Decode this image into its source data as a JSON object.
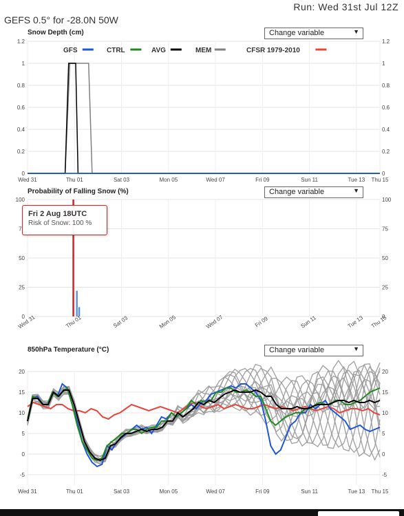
{
  "header": {
    "run": "Run: Wed 31st Jul 12Z",
    "title": "GEFS 0.5° for -28.0N 50W"
  },
  "select_label": "Change variable",
  "x_labels": [
    "Wed 31",
    "Thu 01",
    "Sat 03",
    "Mon 05",
    "Wed 07",
    "Fri 09",
    "Sun 11",
    "Tue 13",
    "Thu 15"
  ],
  "legend": [
    {
      "name": "GFS",
      "color": "#1f55d8"
    },
    {
      "name": "CTRL",
      "color": "#1f8a1f"
    },
    {
      "name": "AVG",
      "color": "#000000"
    },
    {
      "name": "MEM",
      "color": "#808080"
    },
    {
      "name": "CFSR 1979-2010",
      "color": "#e8453c"
    }
  ],
  "tooltip": {
    "line1": "Fri 2 Aug 18UTC",
    "line2": "Risk of Snow: 100 %"
  },
  "chart_data": [
    {
      "type": "line",
      "title": "Snow Depth (cm)",
      "ylim": [
        0,
        1.2
      ],
      "yticks": [
        0,
        0.2,
        0.4,
        0.6,
        0.8,
        1,
        1.2
      ],
      "x_unit": "days since Wed 31 12Z",
      "series": [
        {
          "name": "GFS",
          "color": "#1f55d8",
          "points": [
            [
              0,
              0
            ],
            [
              15,
              0
            ]
          ]
        },
        {
          "name": "CTRL",
          "color": "#1f8a1f",
          "points": [
            [
              0,
              0
            ],
            [
              15,
              0
            ]
          ]
        },
        {
          "name": "MEM-a",
          "color": "#000000",
          "points": [
            [
              0,
              0
            ],
            [
              1.6,
              0
            ],
            [
              1.75,
              1
            ],
            [
              2.05,
              1
            ],
            [
              2.15,
              0
            ],
            [
              15,
              0
            ]
          ]
        },
        {
          "name": "MEM-b",
          "color": "#808080",
          "points": [
            [
              0,
              0
            ],
            [
              1.6,
              0
            ],
            [
              1.8,
              1
            ],
            [
              2.6,
              1
            ],
            [
              2.75,
              0
            ],
            [
              15,
              0
            ]
          ]
        }
      ]
    },
    {
      "type": "bar",
      "title": "Probability of Falling Snow (%)",
      "ylim": [
        0,
        100
      ],
      "yticks": [
        0,
        25,
        50,
        75,
        100
      ],
      "bars": [
        {
          "x": 1.95,
          "value": 100,
          "color": "#cc1f1f"
        },
        {
          "x": 2.1,
          "value": 22,
          "color": "#5b8fd8"
        },
        {
          "x": 2.2,
          "value": 8,
          "color": "#5b8fd8"
        }
      ]
    },
    {
      "type": "line",
      "title": "850hPa Temperature (°C)",
      "ylim": [
        -7.5,
        20
      ],
      "yticks": [
        -5,
        0,
        5,
        10,
        15,
        20
      ],
      "series": [
        {
          "name": "CFSR",
          "color": "#e8453c",
          "values": [
            11.5,
            12.5,
            12,
            11.5,
            11,
            12,
            12,
            11,
            10.5,
            10.5,
            10,
            11,
            10.5,
            9,
            8.5,
            9.5,
            10,
            11,
            12,
            11.5,
            11,
            10.5,
            11,
            11.5,
            11,
            10.5,
            10,
            11,
            12,
            12.5,
            11.5,
            11,
            11.5,
            12,
            11,
            11.5,
            12,
            11.5,
            11,
            11,
            11.5,
            12,
            11.5,
            11,
            11.5,
            11,
            10.5,
            11,
            11.5,
            11,
            10.5,
            11,
            11.5,
            11,
            10,
            10.5,
            11,
            11,
            10.5,
            11,
            10,
            9.5
          ]
        },
        {
          "name": "GFS",
          "color": "#1f55d8",
          "values": [
            8,
            13.5,
            14,
            12,
            12,
            15,
            14,
            17,
            16,
            12,
            8,
            3,
            0,
            -2,
            -3,
            -2.5,
            2,
            1,
            3,
            4,
            5,
            6,
            7,
            6,
            6.5,
            5,
            7,
            9,
            8.5,
            10,
            9,
            10,
            11,
            12,
            11,
            12.5,
            13,
            14.5,
            15,
            15.5,
            16,
            16.5,
            16,
            17,
            17,
            16,
            15,
            13,
            8,
            2,
            0,
            1,
            4,
            7,
            8,
            10,
            10,
            12,
            11,
            12,
            13,
            11,
            10,
            9,
            8,
            6,
            6.5,
            7,
            6,
            5.5,
            6,
            6.5
          ]
        },
        {
          "name": "CTRL",
          "color": "#1f8a1f",
          "values": [
            8,
            14,
            13.5,
            12,
            12,
            15,
            14,
            15,
            16,
            12,
            7,
            3,
            1,
            -1,
            -1.5,
            -1,
            2,
            3,
            4,
            5,
            5,
            6,
            6,
            5,
            6,
            6.5,
            6.5,
            8,
            8,
            10,
            9,
            10,
            11,
            13,
            12,
            13,
            12.5,
            13,
            15,
            15,
            16,
            16,
            15,
            15,
            15.5,
            15,
            14,
            14,
            11,
            8,
            7,
            8,
            9,
            9.5,
            10,
            10,
            11,
            11,
            12,
            12.5,
            12,
            12,
            13,
            13,
            12,
            12,
            12.5,
            13,
            14,
            15,
            15.5,
            16
          ]
        },
        {
          "name": "AVG",
          "color": "#000000",
          "values": [
            8,
            13.5,
            13.5,
            12,
            12,
            15,
            14,
            15.5,
            15.5,
            12,
            7.5,
            3,
            0.5,
            -1,
            -1.5,
            -1,
            2,
            2.5,
            4,
            5,
            5,
            5.5,
            6,
            5.5,
            6,
            6,
            6.5,
            8,
            8,
            10,
            9,
            10,
            11,
            12.5,
            12,
            13,
            12.5,
            13.5,
            14.5,
            15,
            15.5,
            15,
            15,
            15,
            15.5,
            15,
            14,
            14,
            12,
            11,
            11,
            11,
            11.5,
            11,
            11,
            11.5,
            12,
            12,
            12,
            12.5,
            13,
            13,
            12.5,
            13,
            12.5,
            12.5,
            13,
            12.5,
            13
          ]
        }
      ]
    }
  ]
}
